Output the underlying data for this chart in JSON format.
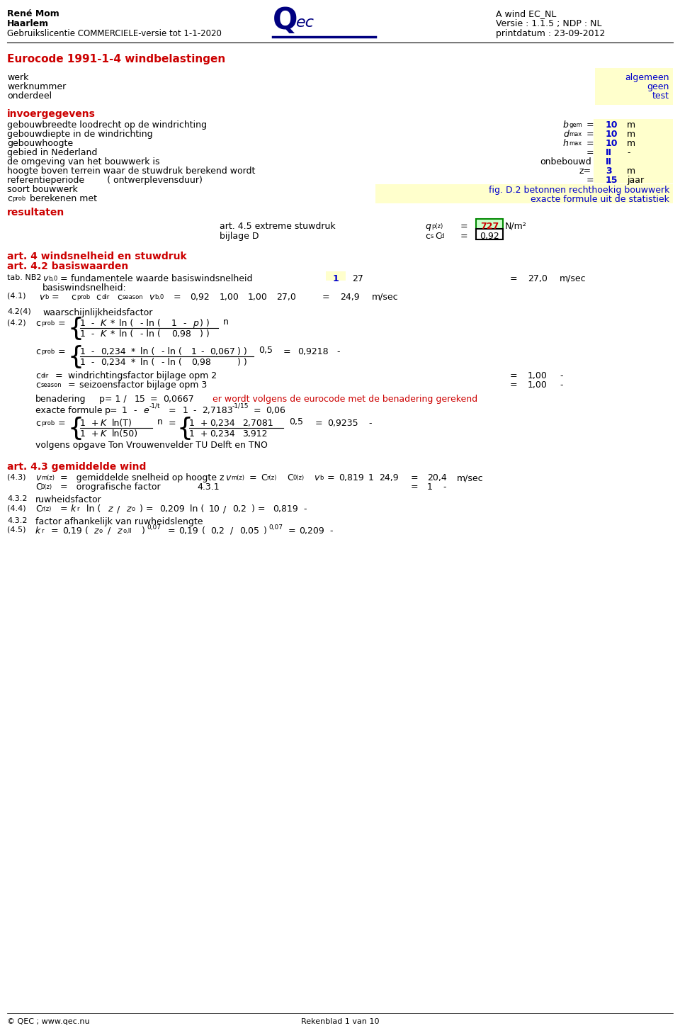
{
  "bg_color": "#ffffff",
  "red_color": "#cc0000",
  "blue_color": "#0000cc",
  "yellow_bg": "#ffffcc",
  "dark_blue": "#000080"
}
